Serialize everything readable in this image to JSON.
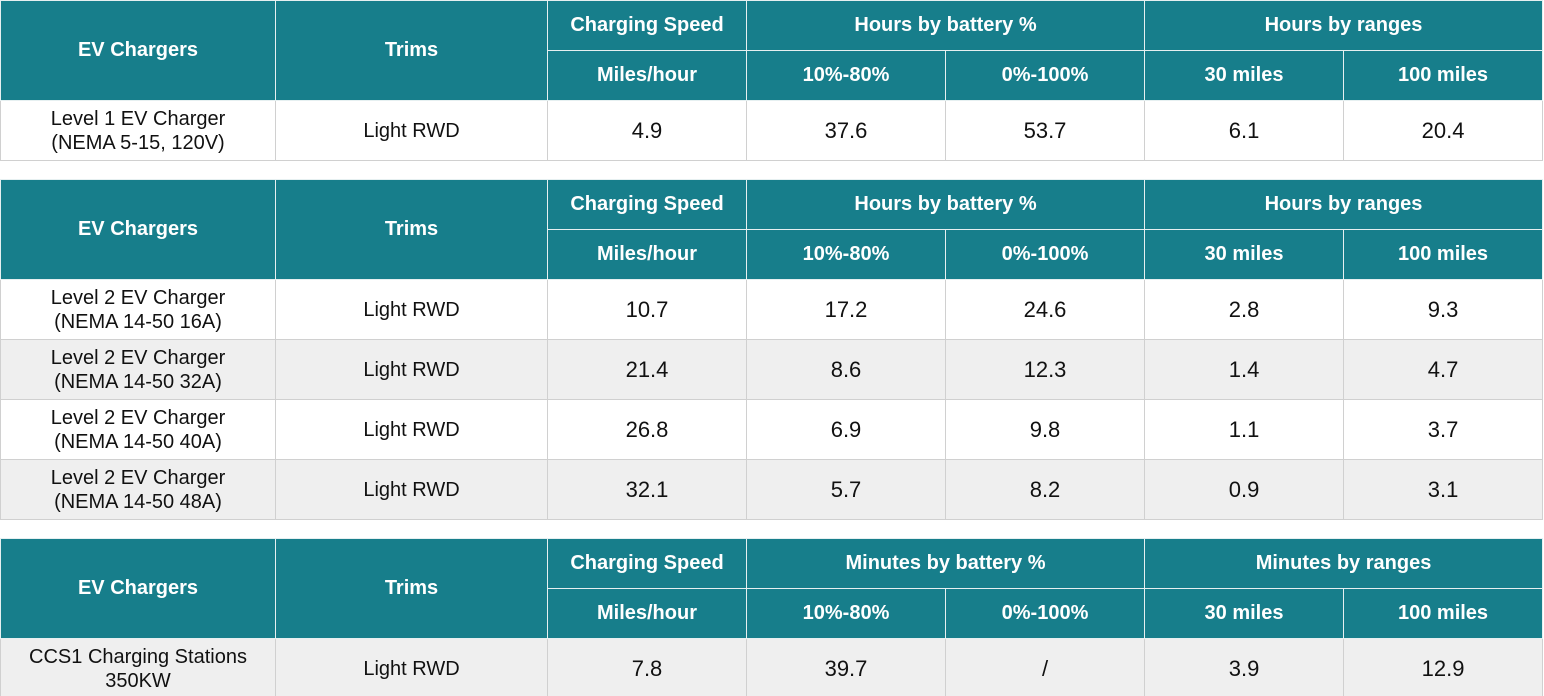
{
  "tables": [
    {
      "header": {
        "groups": [
          "EV Chargers",
          "Trims",
          "Charging Speed",
          "Hours by battery %",
          "Hours by ranges"
        ],
        "subs": [
          "Miles/hour",
          "10%-80%",
          "0%-100%",
          "30 miles",
          "100 miles"
        ]
      },
      "rows": [
        [
          "Level 1 EV Charger\n(NEMA 5-15, 120V)",
          "Light RWD",
          "4.9",
          "37.6",
          "53.7",
          "6.1",
          "20.4"
        ]
      ]
    },
    {
      "header": {
        "groups": [
          "EV Chargers",
          "Trims",
          "Charging Speed",
          "Hours by battery %",
          "Hours by ranges"
        ],
        "subs": [
          "Miles/hour",
          "10%-80%",
          "0%-100%",
          "30 miles",
          "100 miles"
        ]
      },
      "rows": [
        [
          "Level 2 EV Charger\n(NEMA 14-50 16A)",
          "Light RWD",
          "10.7",
          "17.2",
          "24.6",
          "2.8",
          "9.3"
        ],
        [
          "Level 2 EV Charger\n(NEMA 14-50 32A)",
          "Light RWD",
          "21.4",
          "8.6",
          "12.3",
          "1.4",
          "4.7"
        ],
        [
          "Level 2 EV Charger\n(NEMA 14-50 40A)",
          "Light RWD",
          "26.8",
          "6.9",
          "9.8",
          "1.1",
          "3.7"
        ],
        [
          "Level 2 EV Charger\n(NEMA 14-50 48A)",
          "Light RWD",
          "32.1",
          "5.7",
          "8.2",
          "0.9",
          "3.1"
        ]
      ]
    },
    {
      "header": {
        "groups": [
          "EV Chargers",
          "Trims",
          "Charging Speed",
          "Minutes by battery %",
          "Minutes by ranges"
        ],
        "subs": [
          "Miles/hour",
          "10%-80%",
          "0%-100%",
          "30 miles",
          "100 miles"
        ]
      },
      "rows": [
        [
          "CCS1 Charging Stations\n350KW",
          "Light RWD",
          "7.8",
          "39.7",
          "/",
          "3.9",
          "12.9"
        ]
      ]
    }
  ]
}
